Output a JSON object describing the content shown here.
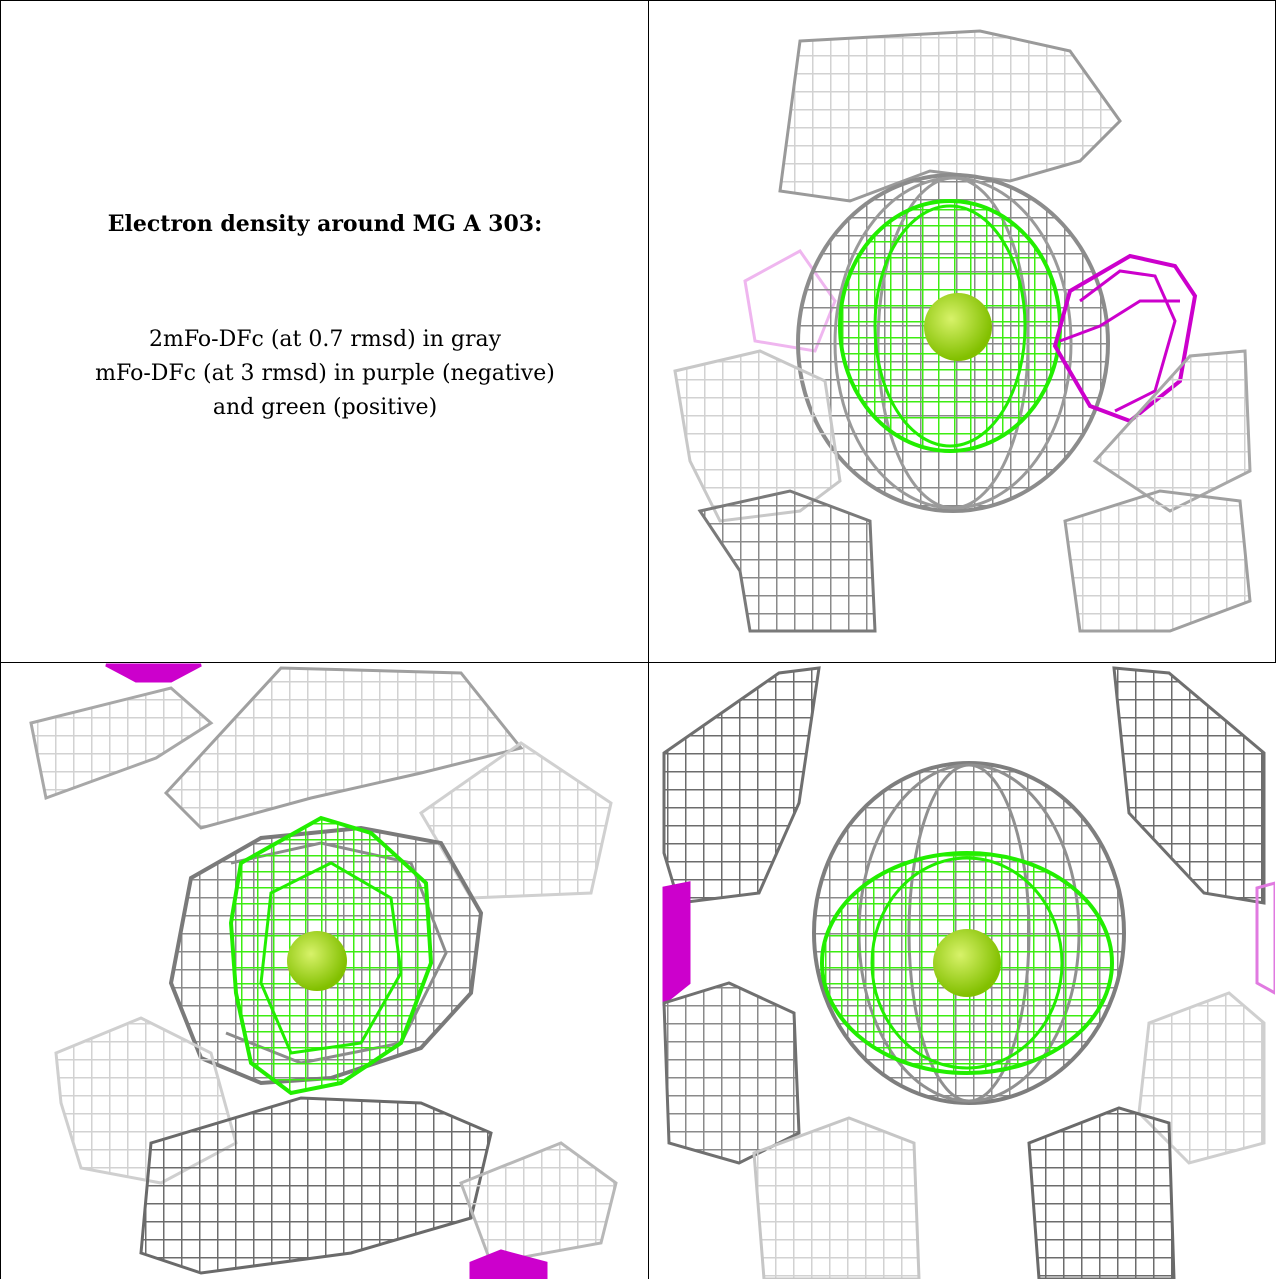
{
  "legend": {
    "title": "Electron density around MG A 303:",
    "line1": "2mFo-DFc (at 0.7 rmsd) in gray",
    "line2": "mFo-DFc (at 3 rmsd) in purple (negative)",
    "line3": "and green (positive)"
  },
  "colors": {
    "map_2fofc": "#8c8c8c",
    "map_fofc_negative": "#cc00cc",
    "map_fofc_positive": "#22ee00",
    "ion": "#99dd00",
    "border": "#000000"
  },
  "views": [
    {
      "name": "view-top-right",
      "icon": "electron-density-mesh-icon"
    },
    {
      "name": "view-bottom-left",
      "icon": "electron-density-mesh-icon"
    },
    {
      "name": "view-bottom-right",
      "icon": "electron-density-mesh-icon"
    }
  ]
}
